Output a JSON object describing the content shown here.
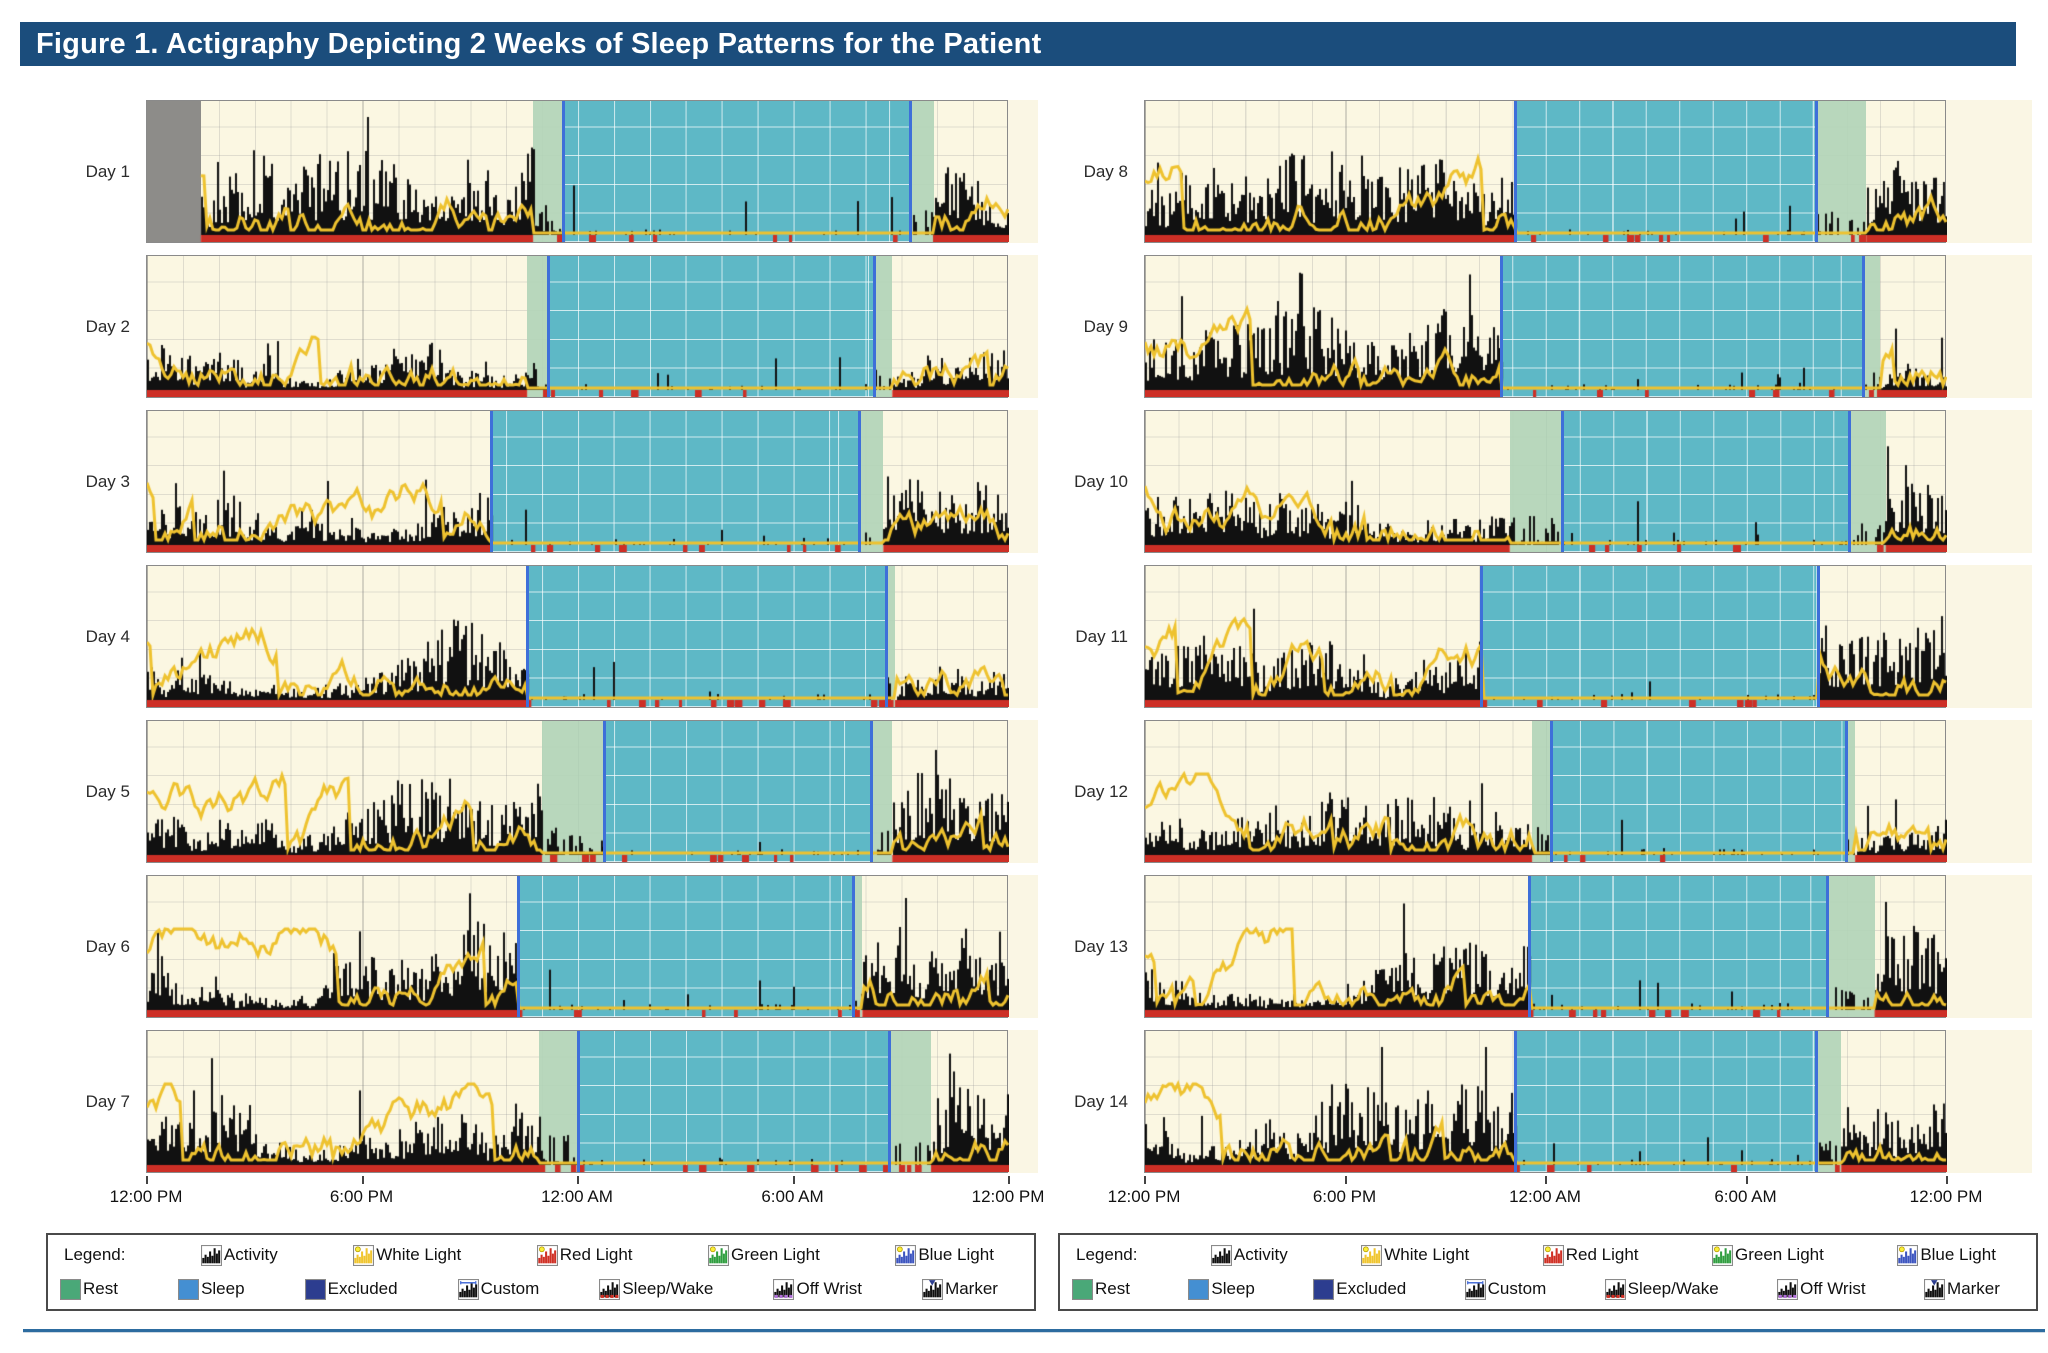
{
  "title": "Figure 1. Actigraphy Depicting 2 Weeks of Sleep Patterns for the Patient",
  "colors": {
    "title_bar": "#1b4d7c",
    "plot_bg": "#fbf7e2",
    "pad_strip": "#faf6e4",
    "activity": "#111111",
    "light": "#eec22f",
    "wake_band": "#cd2f26",
    "sleep_fill": "rgba(88,182,198,0.95)",
    "rest_fill": "rgba(178,212,185,0.92)",
    "excluded_fill": "#8d8c89",
    "boundary_line": "#3e6fd9",
    "bottom_rule": "#2d6ca0",
    "legend_rest": "#4aa878",
    "legend_sleep": "#448fd2",
    "legend_excluded": "#2c3d8f"
  },
  "axis": {
    "ticks": [
      "12:00 PM",
      "6:00 PM",
      "12:00 AM",
      "6:00 AM",
      "12:00 PM"
    ]
  },
  "legend": {
    "heading": "Legend:",
    "row1": [
      {
        "icon": "activity-hist-icon",
        "label": "Activity"
      },
      {
        "icon": "white-light-icon",
        "label": "White Light"
      },
      {
        "icon": "red-light-icon",
        "label": "Red Light"
      },
      {
        "icon": "green-light-icon",
        "label": "Green Light"
      },
      {
        "icon": "blue-light-icon",
        "label": "Blue Light"
      }
    ],
    "row2": [
      {
        "icon": "rest-swatch-icon",
        "label": "Rest"
      },
      {
        "icon": "sleep-swatch-icon",
        "label": "Sleep"
      },
      {
        "icon": "excluded-swatch-icon",
        "label": "Excluded"
      },
      {
        "icon": "custom-icon",
        "label": "Custom"
      },
      {
        "icon": "sleep-wake-icon",
        "label": "Sleep/Wake"
      },
      {
        "icon": "off-wrist-icon",
        "label": "Off Wrist"
      },
      {
        "icon": "marker-icon",
        "label": "Marker"
      }
    ]
  },
  "chart_data": {
    "type": "actigraphy",
    "description": "Double-column actigraphy raster: Days 1-7 (left) and Days 8-14 (right). Each row spans 24 h from 12:00 PM to 12:00 PM. Black bars = activity counts, yellow trace = white light exposure, red bottom band/ticks = scored wake, teal shading = scored sleep interval, pale green shading = rest interval, gray block = excluded data, blue vertical lines = sleep onset/offset.",
    "x_axis": {
      "start": "12:00 PM",
      "end": "12:00 PM",
      "ticks": [
        "12:00 PM",
        "6:00 PM",
        "12:00 AM",
        "6:00 AM",
        "12:00 PM"
      ],
      "gridlines": "hourly (minor), 6-hourly (major)"
    },
    "series": [
      {
        "name": "Activity",
        "style": "black histogram bars"
      },
      {
        "name": "White Light",
        "style": "yellow line"
      },
      {
        "name": "Sleep/Wake score",
        "style": "red band at baseline"
      },
      {
        "name": "Rest interval",
        "style": "pale green shaded region"
      },
      {
        "name": "Sleep interval",
        "style": "teal shaded region bounded by blue lines"
      }
    ],
    "days": [
      {
        "day": 1,
        "label": "Day 1",
        "excluded": [
          "12:00 PM",
          "1:30 PM"
        ],
        "rest": [
          "10:45 PM",
          "9:55 AM"
        ],
        "sleep": [
          "11:35 PM",
          "9:15 AM"
        ]
      },
      {
        "day": 2,
        "label": "Day 2",
        "rest": [
          "10:35 PM",
          "8:45 AM"
        ],
        "sleep": [
          "11:10 PM",
          "8:15 AM"
        ]
      },
      {
        "day": 3,
        "label": "Day 3",
        "rest": [
          "9:35 PM",
          "8:30 AM"
        ],
        "sleep": [
          "9:35 PM",
          "7:50 AM"
        ]
      },
      {
        "day": 4,
        "label": "Day 4",
        "rest": [
          "10:35 PM",
          "8:50 AM"
        ],
        "sleep": [
          "10:35 PM",
          "8:35 AM"
        ]
      },
      {
        "day": 5,
        "label": "Day 5",
        "rest": [
          "11:00 PM",
          "8:45 AM"
        ],
        "sleep": [
          "12:45 AM",
          "8:10 AM"
        ]
      },
      {
        "day": 6,
        "label": "Day 6",
        "rest": [
          "10:20 PM",
          "7:55 AM"
        ],
        "sleep": [
          "10:20 PM",
          "7:40 AM"
        ]
      },
      {
        "day": 7,
        "label": "Day 7",
        "rest": [
          "10:55 PM",
          "9:50 AM"
        ],
        "sleep": [
          "12:00 AM",
          "8:40 AM"
        ]
      },
      {
        "day": 8,
        "label": "Day 8",
        "rest": [
          "11:05 PM",
          "9:35 AM"
        ],
        "sleep": [
          "11:05 PM",
          "8:05 AM"
        ]
      },
      {
        "day": 9,
        "label": "Day 9",
        "rest": [
          "10:40 PM",
          "10:00 AM"
        ],
        "sleep": [
          "10:40 PM",
          "9:30 AM"
        ]
      },
      {
        "day": 10,
        "label": "Day 10",
        "rest": [
          "10:55 PM",
          "10:10 AM"
        ],
        "sleep": [
          "12:30 AM",
          "9:05 AM"
        ]
      },
      {
        "day": 11,
        "label": "Day 11",
        "rest": [
          "10:05 PM",
          "8:10 AM"
        ],
        "sleep": [
          "10:05 PM",
          "8:10 AM"
        ]
      },
      {
        "day": 12,
        "label": "Day 12",
        "rest": [
          "11:35 PM",
          "9:15 AM"
        ],
        "sleep": [
          "12:10 AM",
          "9:00 AM"
        ]
      },
      {
        "day": 13,
        "label": "Day 13",
        "rest": [
          "11:30 PM",
          "9:50 AM"
        ],
        "sleep": [
          "11:30 PM",
          "8:25 AM"
        ]
      },
      {
        "day": 14,
        "label": "Day 14",
        "rest": [
          "11:05 PM",
          "8:50 AM"
        ],
        "sleep": [
          "11:05 PM",
          "8:05 AM"
        ]
      }
    ]
  }
}
